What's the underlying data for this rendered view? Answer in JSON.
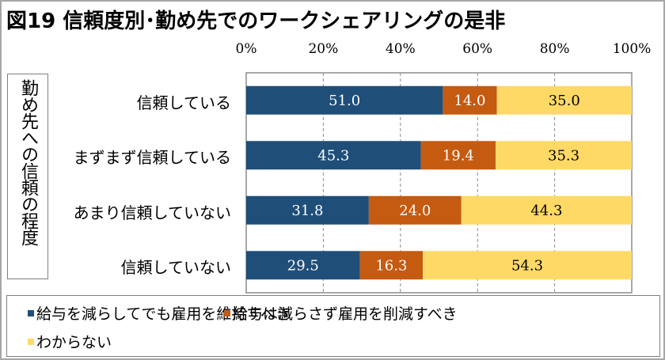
{
  "chart_data": {
    "type": "bar",
    "orientation": "horizontal",
    "stacked": true,
    "percent_stacked": true,
    "title": "図19 信頼度別･勤め先でのワークシェアリングの是非",
    "ylabel": "勤め先への信頼の程度",
    "xlabel": "",
    "xlim": [
      0,
      100
    ],
    "x_ticks": [
      "0%",
      "20%",
      "40%",
      "60%",
      "80%",
      "100%"
    ],
    "x_tick_values": [
      0,
      20,
      40,
      60,
      80,
      100
    ],
    "grid": "vertical dashed",
    "categories": [
      "信頼している",
      "まずまず信頼している",
      "あまり信頼していない",
      "信頼していない"
    ],
    "series": [
      {
        "name": "給与を減らしてでも雇用を維持すべき",
        "color": "#1f4e79",
        "label_color": "#ffffff",
        "values": [
          51.0,
          45.3,
          31.8,
          29.5
        ]
      },
      {
        "name": "給与は減らさず雇用を削減すべき",
        "color": "#c55a11",
        "label_color": "#ffffff",
        "values": [
          14.0,
          19.4,
          24.0,
          16.3
        ]
      },
      {
        "name": "わからない",
        "color": "#ffd966",
        "label_color": "#000000",
        "values": [
          35.0,
          35.3,
          44.3,
          54.3
        ]
      }
    ],
    "legend_position": "bottom"
  }
}
